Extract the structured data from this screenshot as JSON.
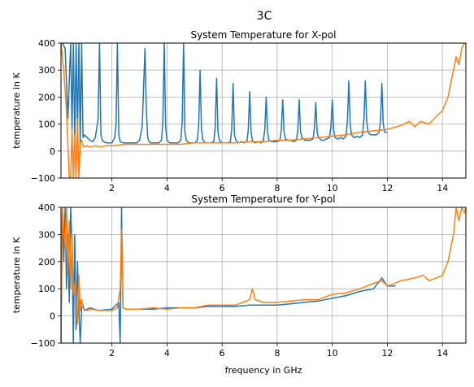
{
  "figure": {
    "suptitle": "3C"
  },
  "colors": {
    "series1": "#1f77b4",
    "series2": "#ff7f0e",
    "grid": "#b0b0b0"
  },
  "chart_data": [
    {
      "type": "line",
      "title": "System Temperature for X-pol",
      "xlabel": "",
      "ylabel": "temperature in K",
      "xlim": [
        0.15,
        14.85
      ],
      "ylim": [
        -100,
        400
      ],
      "xticks": [
        2,
        4,
        6,
        8,
        10,
        12,
        14
      ],
      "yticks": [
        -100,
        0,
        100,
        200,
        300,
        400
      ],
      "xtick_labels": [
        "2",
        "4",
        "6",
        "8",
        "10",
        "12",
        "14"
      ],
      "ytick_labels": [
        "−100",
        "0",
        "100",
        "200",
        "300",
        "400"
      ],
      "grid": true,
      "series": [
        {
          "color": "#1f77b4",
          "x": [
            0.15,
            0.2,
            0.3,
            0.4,
            0.5,
            0.55,
            0.6,
            0.65,
            0.7,
            0.75,
            0.8,
            0.85,
            0.9,
            0.95,
            1.0,
            1.1,
            1.2,
            1.3,
            1.4,
            1.5,
            1.55,
            1.6,
            1.65,
            1.7,
            1.8,
            1.9,
            2.0,
            2.1,
            2.15,
            2.2,
            2.25,
            2.3,
            2.4,
            2.5,
            2.6,
            2.7,
            2.8,
            2.9,
            3.0,
            3.1,
            3.2,
            3.25,
            3.3,
            3.35,
            3.4,
            3.5,
            3.6,
            3.7,
            3.8,
            3.85,
            3.9,
            3.95,
            4.0,
            4.1,
            4.2,
            4.3,
            4.4,
            4.5,
            4.55,
            4.6,
            4.65,
            4.7,
            4.8,
            4.9,
            5.0,
            5.1,
            5.15,
            5.2,
            5.25,
            5.3,
            5.4,
            5.5,
            5.6,
            5.7,
            5.75,
            5.8,
            5.85,
            5.9,
            6.0,
            6.1,
            6.2,
            6.3,
            6.35,
            6.4,
            6.45,
            6.5,
            6.6,
            6.7,
            6.8,
            6.9,
            6.95,
            7.0,
            7.05,
            7.1,
            7.2,
            7.3,
            7.4,
            7.5,
            7.55,
            7.6,
            7.65,
            7.7,
            7.8,
            7.9,
            8.0,
            8.1,
            8.15,
            8.2,
            8.25,
            8.3,
            8.4,
            8.5,
            8.6,
            8.7,
            8.75,
            8.8,
            8.85,
            8.9,
            9.0,
            9.1,
            9.2,
            9.3,
            9.35,
            9.4,
            9.45,
            9.5,
            9.6,
            9.7,
            9.8,
            9.9,
            9.95,
            10.0,
            10.05,
            10.1,
            10.2,
            10.3,
            10.4,
            10.5,
            10.55,
            10.6,
            10.65,
            10.7,
            10.8,
            10.9,
            11.0,
            11.1,
            11.15,
            11.2,
            11.25,
            11.3,
            11.4,
            11.5,
            11.6,
            11.7,
            11.75,
            11.8,
            11.85,
            11.9,
            12.0
          ],
          "y": [
            400,
            400,
            380,
            120,
            400,
            80,
            400,
            40,
            400,
            60,
            400,
            30,
            400,
            50,
            60,
            50,
            40,
            35,
            50,
            120,
            400,
            60,
            40,
            35,
            30,
            30,
            30,
            50,
            100,
            400,
            60,
            35,
            30,
            30,
            30,
            30,
            30,
            30,
            40,
            90,
            380,
            150,
            50,
            35,
            30,
            30,
            30,
            30,
            40,
            110,
            400,
            90,
            40,
            30,
            30,
            30,
            30,
            40,
            110,
            400,
            70,
            40,
            30,
            30,
            30,
            40,
            100,
            300,
            80,
            40,
            30,
            30,
            30,
            35,
            90,
            270,
            70,
            40,
            30,
            30,
            30,
            35,
            80,
            250,
            60,
            40,
            30,
            35,
            30,
            35,
            80,
            220,
            70,
            40,
            30,
            35,
            30,
            40,
            80,
            200,
            70,
            40,
            35,
            35,
            35,
            40,
            80,
            190,
            70,
            45,
            40,
            40,
            35,
            40,
            80,
            190,
            70,
            50,
            40,
            40,
            40,
            45,
            85,
            180,
            70,
            50,
            40,
            40,
            45,
            50,
            90,
            190,
            80,
            50,
            45,
            50,
            45,
            55,
            110,
            260,
            100,
            60,
            50,
            55,
            50,
            60,
            120,
            260,
            110,
            70,
            60,
            60,
            60,
            70,
            110,
            250,
            100,
            70,
            70
          ]
        },
        {
          "color": "#ff7f0e",
          "x": [
            0.15,
            0.25,
            0.35,
            0.45,
            0.5,
            0.55,
            0.6,
            0.65,
            0.7,
            0.75,
            0.8,
            0.85,
            0.9,
            0.95,
            1.0,
            1.1,
            1.2,
            1.4,
            1.6,
            1.8,
            2.0,
            2.5,
            3.0,
            3.5,
            4.0,
            4.5,
            5.0,
            5.5,
            6.0,
            6.5,
            7.0,
            7.5,
            8.0,
            8.5,
            9.0,
            9.5,
            10.0,
            10.5,
            11.0,
            11.5,
            12.0,
            12.5,
            12.8,
            13.0,
            13.2,
            13.5,
            13.8,
            14.0,
            14.2,
            14.3,
            14.4,
            14.5,
            14.6,
            14.7,
            14.8,
            14.85
          ],
          "y": [
            400,
            300,
            150,
            -100,
            -100,
            80,
            -100,
            60,
            -100,
            120,
            -100,
            30,
            40,
            20,
            15,
            20,
            15,
            20,
            15,
            20,
            20,
            25,
            25,
            25,
            25,
            25,
            30,
            30,
            30,
            30,
            35,
            35,
            40,
            40,
            45,
            50,
            55,
            60,
            70,
            75,
            80,
            95,
            110,
            90,
            110,
            100,
            130,
            150,
            200,
            250,
            300,
            350,
            320,
            380,
            400,
            400
          ]
        }
      ]
    },
    {
      "type": "line",
      "title": "System Temperature for Y-pol",
      "xlabel": "frequency in GHz",
      "ylabel": "temperature in K",
      "xlim": [
        0.15,
        14.85
      ],
      "ylim": [
        -100,
        400
      ],
      "xticks": [
        2,
        4,
        6,
        8,
        10,
        12,
        14
      ],
      "yticks": [
        -100,
        0,
        100,
        200,
        300,
        400
      ],
      "xtick_labels": [
        "2",
        "4",
        "6",
        "8",
        "10",
        "12",
        "14"
      ],
      "ytick_labels": [
        "−100",
        "0",
        "100",
        "200",
        "300",
        "400"
      ],
      "grid": true,
      "series": [
        {
          "color": "#1f77b4",
          "x": [
            0.15,
            0.2,
            0.25,
            0.3,
            0.35,
            0.4,
            0.45,
            0.5,
            0.55,
            0.6,
            0.65,
            0.7,
            0.75,
            0.8,
            0.85,
            0.9,
            0.95,
            1.0,
            1.1,
            1.2,
            1.5,
            2.0,
            2.25,
            2.3,
            2.35,
            2.4,
            2.5,
            3.0,
            3.5,
            4.0,
            4.5,
            5.0,
            5.5,
            6.0,
            6.5,
            7.0,
            7.5,
            8.0,
            8.5,
            9.0,
            9.5,
            10.0,
            10.5,
            11.0,
            11.5,
            11.8,
            12.0,
            12.3
          ],
          "y": [
            -100,
            400,
            200,
            400,
            100,
            300,
            50,
            400,
            250,
            -100,
            300,
            -50,
            200,
            20,
            -100,
            30,
            40,
            20,
            25,
            30,
            20,
            25,
            50,
            -100,
            400,
            30,
            25,
            25,
            25,
            30,
            30,
            30,
            35,
            35,
            35,
            40,
            40,
            40,
            45,
            50,
            55,
            65,
            75,
            90,
            100,
            140,
            110,
            110
          ]
        },
        {
          "color": "#ff7f0e",
          "x": [
            0.15,
            0.2,
            0.3,
            0.35,
            0.4,
            0.45,
            0.5,
            0.55,
            0.6,
            0.65,
            0.7,
            0.75,
            0.8,
            0.85,
            0.9,
            0.95,
            1.0,
            1.1,
            1.3,
            1.5,
            1.8,
            2.0,
            2.2,
            2.3,
            2.35,
            2.4,
            2.5,
            3.0,
            3.5,
            4.0,
            4.5,
            5.0,
            5.5,
            6.0,
            6.5,
            7.0,
            7.1,
            7.2,
            7.5,
            8.0,
            8.5,
            9.0,
            9.5,
            10.0,
            10.5,
            11.0,
            11.5,
            11.8,
            12.0,
            12.5,
            13.0,
            13.3,
            13.5,
            13.8,
            14.0,
            14.2,
            14.4,
            14.5,
            14.6,
            14.7,
            14.8,
            14.85
          ],
          "y": [
            -100,
            400,
            250,
            400,
            150,
            350,
            100,
            300,
            80,
            120,
            60,
            -30,
            150,
            20,
            60,
            30,
            25,
            20,
            25,
            20,
            20,
            20,
            30,
            100,
            320,
            30,
            25,
            25,
            30,
            25,
            30,
            30,
            40,
            40,
            40,
            60,
            100,
            60,
            50,
            50,
            55,
            60,
            60,
            80,
            85,
            100,
            120,
            130,
            110,
            130,
            140,
            150,
            130,
            140,
            150,
            200,
            300,
            400,
            350,
            400,
            380,
            400
          ]
        }
      ]
    }
  ]
}
